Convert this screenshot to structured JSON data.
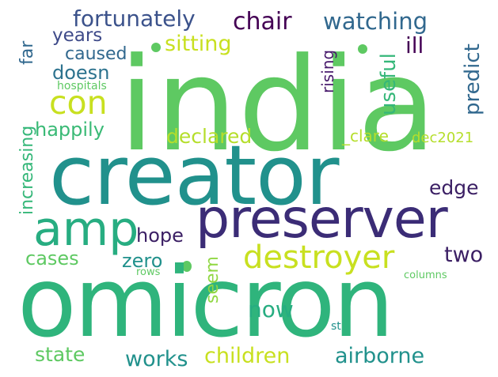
{
  "palette": {
    "light_green": "#5ec962",
    "teal": "#21918c",
    "dark_purple": "#3b1f64",
    "yellow": "#c8e020",
    "green": "#27ad81",
    "blue": "#31688e",
    "indigo": "#443983"
  },
  "words": [
    {
      "text": "india",
      "color": "#5ec962"
    },
    {
      "text": "creator",
      "color": "#21918c"
    },
    {
      "text": "omicron",
      "color": "#2fb47c"
    },
    {
      "text": "preserver",
      "color": "#3b2c76"
    },
    {
      "text": "amp",
      "color": "#27ad81"
    },
    {
      "text": "destroyer",
      "color": "#c8e020"
    },
    {
      "text": "con",
      "color": "#c8e020"
    },
    {
      "text": "fortunately",
      "color": "#3b528b"
    },
    {
      "text": "chair",
      "color": "#440154"
    },
    {
      "text": "watching",
      "color": "#31688e"
    },
    {
      "text": "years",
      "color": "#3e4a89"
    },
    {
      "text": "caused",
      "color": "#31688e"
    },
    {
      "text": "sitting",
      "color": "#c8e020"
    },
    {
      "text": "doesn",
      "color": "#2c728e"
    },
    {
      "text": "ill",
      "color": "#440154"
    },
    {
      "text": "useful",
      "color": "#35b779"
    },
    {
      "text": "predict",
      "color": "#31688e"
    },
    {
      "text": "rising",
      "color": "#481a6c"
    },
    {
      "text": "far",
      "color": "#31688e"
    },
    {
      "text": "increasing",
      "color": "#35b779"
    },
    {
      "text": "hospitals",
      "color": "#5ec962"
    },
    {
      "text": "happily",
      "color": "#3aba76"
    },
    {
      "text": "declared",
      "color": "#b5de2b"
    },
    {
      "text": "_clare",
      "color": "#b5de2b"
    },
    {
      "text": "dec2021",
      "color": "#b5de2b"
    },
    {
      "text": "edge",
      "color": "#3b1f64"
    },
    {
      "text": "hope",
      "color": "#3b1f64"
    },
    {
      "text": "two",
      "color": "#3b1f64"
    },
    {
      "text": "cases",
      "color": "#5ec962"
    },
    {
      "text": "zero",
      "color": "#21918c"
    },
    {
      "text": "seem",
      "color": "#90d743"
    },
    {
      "text": "rows",
      "color": "#5ec962"
    },
    {
      "text": "columns",
      "color": "#5ec962"
    },
    {
      "text": "now",
      "color": "#27ad81"
    },
    {
      "text": "works",
      "color": "#21918c"
    },
    {
      "text": "children",
      "color": "#c8e020"
    },
    {
      "text": "airborne",
      "color": "#21918c"
    },
    {
      "text": "state",
      "color": "#5ec962"
    },
    {
      "text": "st",
      "color": "#21918c"
    }
  ]
}
